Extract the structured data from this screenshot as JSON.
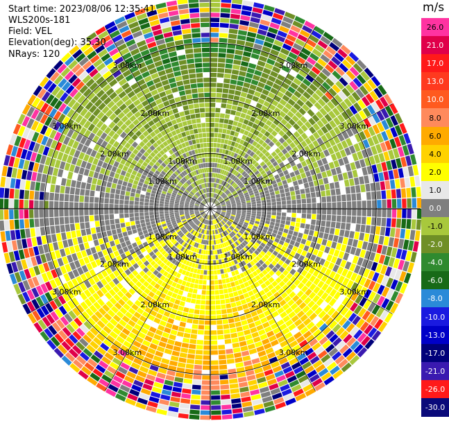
{
  "header": {
    "start_time": "Start time: 2023/08/06 12:35:41",
    "instrument": "WLS200s-181",
    "field": "Field: VEL",
    "elevation": "Elevation(deg): 35.30",
    "nrays": "NRays: 120"
  },
  "chart_data": {
    "type": "heatmap",
    "subtype": "polar-ppi",
    "field": "VEL",
    "units": "m/s",
    "nrays": 120,
    "range_rings_km": [
      1.0,
      2.0,
      3.0
    ],
    "max_range_km": 3.8,
    "ring_labels": [
      "1.00km",
      "2.00km",
      "3.00km"
    ],
    "colorbar": {
      "title": "m/s",
      "ticks": [
        "26.0",
        "21.0",
        "17.0",
        "13.0",
        "10.0",
        "8.0",
        "6.0",
        "4.0",
        "2.0",
        "1.0",
        "0.0",
        "-1.0",
        "-2.0",
        "-4.0",
        "-6.0",
        "-8.0",
        "-10.0",
        "-13.0",
        "-17.0",
        "-21.0",
        "-26.0",
        "-30.0"
      ],
      "colors": [
        "#ff33a1",
        "#e0004a",
        "#ff1a1a",
        "#ff3a1f",
        "#ff5a1f",
        "#ff8a5c",
        "#ffaa00",
        "#ffd200",
        "#ffff00",
        "#e8e8e8",
        "#7f7f7f",
        "#a8c83c",
        "#6f8f26",
        "#2f8a2f",
        "#176a17",
        "#2a8ad8",
        "#1a1ae0",
        "#0000c8",
        "#00007a",
        "#3a1ab0",
        "#ff1a1a",
        "#0a0a7a"
      ]
    }
  }
}
